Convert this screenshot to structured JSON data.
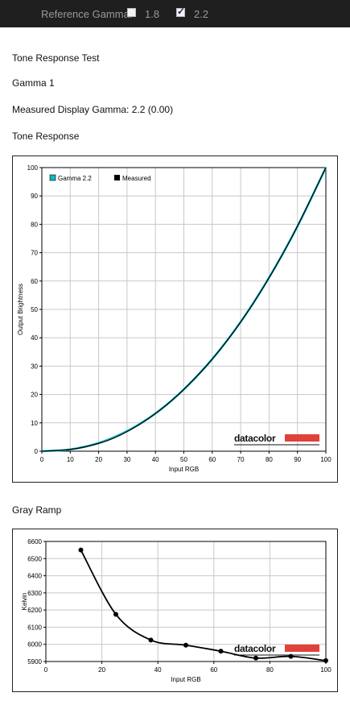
{
  "header": {
    "reference_label": "Reference Gamma:",
    "options": [
      {
        "label": "1.8",
        "checked": false
      },
      {
        "label": "2.2",
        "checked": true
      }
    ]
  },
  "content": {
    "test_title": "Tone Response Test",
    "profile_name": "Gamma 1",
    "measured_gamma": "Measured Display Gamma: 2.2 (0.00)",
    "tone_section_title": "Tone Response",
    "gray_section_title": "Gray Ramp"
  },
  "brand": "datacolor",
  "colors": {
    "gamma_line": "#16b5c6",
    "measured_line": "#000000",
    "brand_bar": "#e0413a"
  },
  "chart_data": [
    {
      "type": "line",
      "xlabel": "Input RGB",
      "ylabel": "Output Brightness",
      "xlim": [
        0,
        100
      ],
      "ylim": [
        0,
        100
      ],
      "xticks": [
        "0",
        "10",
        "20",
        "30",
        "40",
        "50",
        "60",
        "70",
        "80",
        "90",
        "100"
      ],
      "yticks": [
        "0",
        "10",
        "20",
        "30",
        "40",
        "50",
        "60",
        "70",
        "80",
        "90",
        "100"
      ],
      "grid": true,
      "legend_position": "top-left",
      "series": [
        {
          "name": "Gamma 2.2",
          "x": [
            0,
            10,
            20,
            30,
            40,
            50,
            60,
            70,
            80,
            90,
            100
          ],
          "y": [
            0,
            0.6,
            2.9,
            7.1,
            13.3,
            21.8,
            32.5,
            45.6,
            61.2,
            79.3,
            100
          ]
        },
        {
          "name": "Measured",
          "x": [
            0,
            12.5,
            25,
            37.5,
            50,
            62.5,
            75,
            87.5,
            100
          ],
          "y": [
            0,
            1.0,
            4.5,
            11.5,
            21.8,
            35.5,
            53.0,
            74.5,
            100
          ]
        }
      ]
    },
    {
      "type": "line",
      "xlabel": "Input RGB",
      "ylabel": "Kelvin",
      "xlim": [
        0,
        100
      ],
      "ylim": [
        5900,
        6600
      ],
      "xticks": [
        "0",
        "20",
        "40",
        "60",
        "80",
        "100"
      ],
      "yticks": [
        "5900",
        "6000",
        "6100",
        "6200",
        "6300",
        "6400",
        "6500",
        "6600"
      ],
      "grid": true,
      "series": [
        {
          "x": [
            12.5,
            25,
            37.5,
            50,
            62.5,
            75,
            87.5,
            100
          ],
          "y": [
            6550,
            6175,
            6025,
            5995,
            5960,
            5920,
            5930,
            5905
          ]
        }
      ]
    }
  ]
}
